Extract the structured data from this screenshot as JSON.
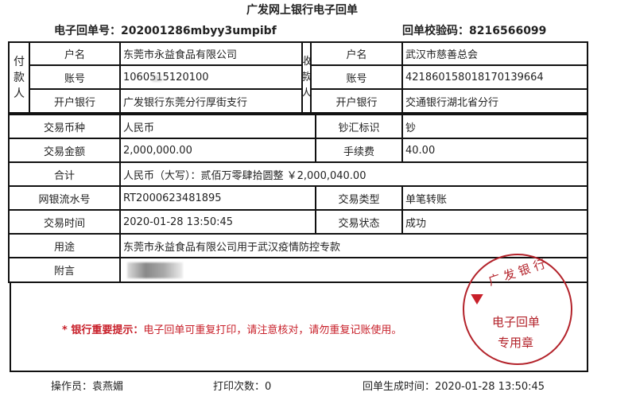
{
  "title": "广发网上银行电子回单",
  "receipt_no_label": "电子回单号：",
  "receipt_no": "202001286mbyy3umpibf",
  "check_code_label": "回单校验码：",
  "check_code": "8216566099",
  "payer": {
    "side_label": [
      "付",
      "款",
      "人"
    ],
    "name_label": "户名",
    "name": "东莞市永益食品有限公司",
    "account_label": "账号",
    "account": "1060515120100",
    "bank_label": "开户银行",
    "bank": "广发银行东莞分行厚街支行"
  },
  "payee": {
    "side_label": [
      "收",
      "款",
      "人"
    ],
    "name_label": "户名",
    "name": "武汉市慈善总会",
    "account_label": "账号",
    "account": "421860158018170139664",
    "bank_label": "开户银行",
    "bank": "交通银行湖北省分行"
  },
  "rows": {
    "currency_label": "交易币种",
    "currency": "人民币",
    "cash_flag_label": "钞汇标识",
    "cash_flag": "钞",
    "amount_label": "交易金额",
    "amount": "2,000,000.00",
    "fee_label": "手续费",
    "fee": "40.00",
    "total_label": "合计",
    "total": "人民币（大写）：贰佰万零肆拾圆整 ￥2,000,040.00",
    "serial_label": "网银流水号",
    "serial": "RT2000623481895",
    "type_label": "交易类型",
    "type": "单笔转账",
    "time_label": "交易时间",
    "time": "2020-01-28 13:50:45",
    "status_label": "交易状态",
    "status": "成功",
    "purpose_label": "用途",
    "purpose": "东莞市永益食品有限公司用于武汉疫情防控专款",
    "remark_label": "附言"
  },
  "notice": {
    "prefix": "* 银行重要提示：",
    "text": "电子回单可重复打印，请注意核对，请勿重复记账使用。",
    "color": "#c8202a"
  },
  "stamp": {
    "top": "广发银行",
    "line1": "电子回单",
    "line2": "专用章",
    "color": "#b3222a"
  },
  "footer": {
    "operator": "操作员：袁燕媚",
    "print_count": "打印次数：0",
    "generated": "回单生成时间：2020-01-28 13:50:45"
  }
}
